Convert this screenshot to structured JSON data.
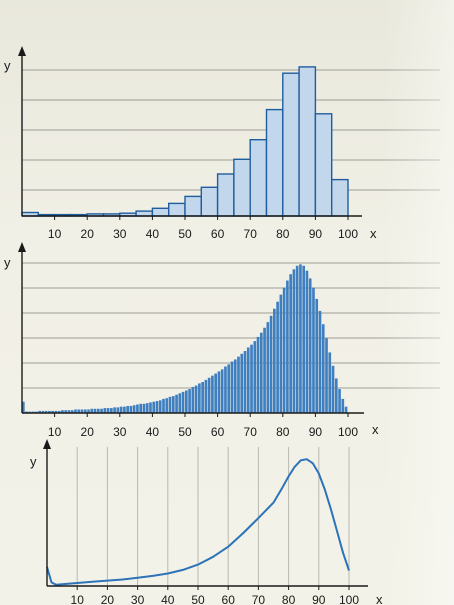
{
  "chart_data": [
    {
      "type": "bar",
      "title": "",
      "xlabel": "x",
      "ylabel": "y",
      "xlim": [
        0,
        100
      ],
      "x_ticks": [
        "10",
        "20",
        "30",
        "40",
        "50",
        "60",
        "70",
        "80",
        "90",
        "100"
      ],
      "bin_width": 5,
      "categories": [
        "0-5",
        "5-10",
        "10-15",
        "15-20",
        "20-25",
        "25-30",
        "30-35",
        "35-40",
        "40-45",
        "45-50",
        "50-55",
        "55-60",
        "60-65",
        "65-70",
        "70-75",
        "75-80",
        "80-85",
        "85-90",
        "90-95",
        "95-100"
      ],
      "values": [
        0.5,
        0.2,
        0.2,
        0.2,
        0.3,
        0.3,
        0.4,
        0.7,
        1.1,
        1.8,
        2.8,
        4.1,
        6.0,
        8.1,
        10.9,
        15.2,
        20.4,
        21.3,
        14.6,
        5.2
      ],
      "grid": true,
      "colors": {
        "bar_fill": "#c3d7ec",
        "bar_stroke": "#1f5e9e"
      }
    },
    {
      "type": "bar",
      "title": "",
      "xlabel": "x",
      "ylabel": "y",
      "xlim": [
        0,
        100
      ],
      "x_ticks": [
        "10",
        "20",
        "30",
        "40",
        "50",
        "60",
        "70",
        "80",
        "90",
        "100"
      ],
      "bin_width": 1,
      "values": [
        1.6,
        0.2,
        0.2,
        0.2,
        0.2,
        0.3,
        0.3,
        0.3,
        0.3,
        0.3,
        0.3,
        0.3,
        0.4,
        0.4,
        0.4,
        0.4,
        0.5,
        0.5,
        0.5,
        0.5,
        0.5,
        0.6,
        0.6,
        0.6,
        0.6,
        0.7,
        0.7,
        0.7,
        0.8,
        0.8,
        0.9,
        0.9,
        1,
        1,
        1.1,
        1.2,
        1.3,
        1.3,
        1.4,
        1.5,
        1.6,
        1.7,
        1.8,
        2,
        2.1,
        2.3,
        2.4,
        2.6,
        2.8,
        3,
        3.2,
        3.4,
        3.7,
        3.9,
        4.2,
        4.4,
        4.7,
        5,
        5.3,
        5.6,
        5.9,
        6.2,
        6.6,
        6.9,
        7.3,
        7.6,
        8,
        8.4,
        8.8,
        9.3,
        9.7,
        10.2,
        10.8,
        11.4,
        12.1,
        12.9,
        13.8,
        14.8,
        15.8,
        16.8,
        17.8,
        18.8,
        19.7,
        20.4,
        20.9,
        21.1,
        20.9,
        20.2,
        19.1,
        17.8,
        16.2,
        14.5,
        12.6,
        10.6,
        8.6,
        6.7,
        4.9,
        3.4,
        2,
        0.9
      ],
      "grid": true,
      "colors": {
        "bar_fill": "#3f7fc0",
        "bar_stroke": "#1f5e9e"
      }
    },
    {
      "type": "line",
      "title": "",
      "xlabel": "x",
      "ylabel": "y",
      "xlim": [
        0,
        100
      ],
      "x_ticks": [
        "10",
        "20",
        "30",
        "40",
        "50",
        "60",
        "70",
        "80",
        "90",
        "100"
      ],
      "x": [
        0,
        1.5,
        3,
        5,
        10,
        15,
        20,
        25,
        30,
        35,
        40,
        45,
        50,
        55,
        60,
        65,
        70,
        75,
        78,
        80,
        82,
        84,
        86,
        88,
        90,
        92,
        94,
        96,
        98,
        100
      ],
      "values": [
        3.2,
        0.6,
        0.2,
        0.3,
        0.5,
        0.7,
        0.9,
        1.1,
        1.4,
        1.7,
        2.1,
        2.7,
        3.6,
        4.9,
        6.6,
        8.9,
        11.4,
        14,
        16.6,
        18.4,
        20,
        21.1,
        21.3,
        20.6,
        18.9,
        16.2,
        12.9,
        9.3,
        5.6,
        2.6
      ],
      "grid": true,
      "colors": {
        "line": "#2c73b8"
      }
    }
  ]
}
